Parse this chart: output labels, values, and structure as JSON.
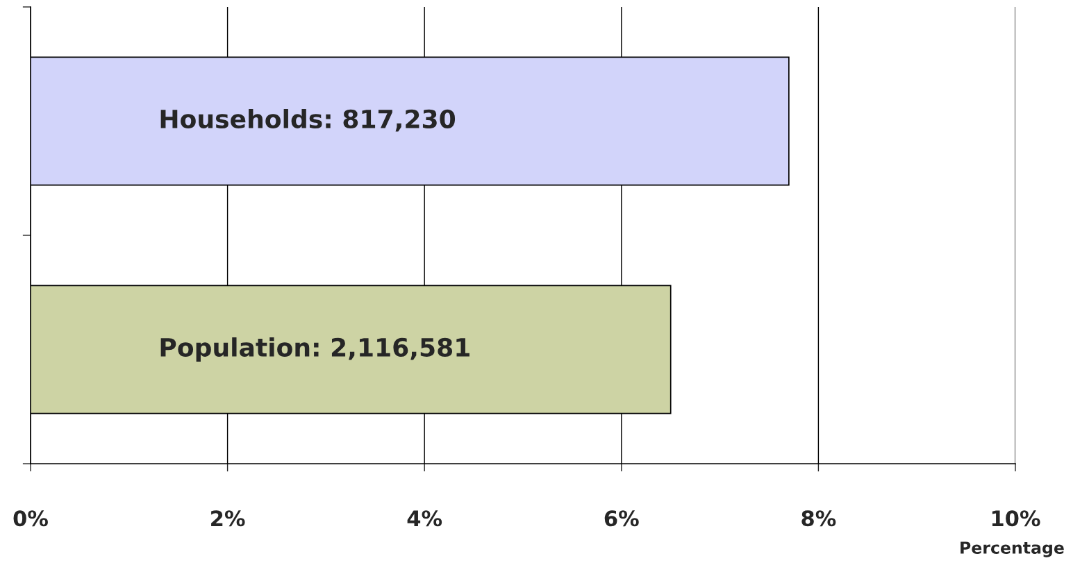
{
  "chart_data": {
    "type": "bar",
    "orientation": "horizontal",
    "categories": [
      "Households: 817,230",
      "Population: 2,116,581"
    ],
    "values": [
      7.7,
      6.5
    ],
    "colors": [
      "#d2d4fa",
      "#cdd3a4"
    ],
    "xlabel": "Percentage",
    "xlim": [
      0,
      10
    ],
    "xticks": [
      {
        "value": 0,
        "label": "0%"
      },
      {
        "value": 2,
        "label": "2%"
      },
      {
        "value": 4,
        "label": "4%"
      },
      {
        "value": 6,
        "label": "6%"
      },
      {
        "value": 8,
        "label": "8%"
      },
      {
        "value": 10,
        "label": "10%"
      }
    ],
    "grid": "x",
    "tick_labels": "x"
  }
}
